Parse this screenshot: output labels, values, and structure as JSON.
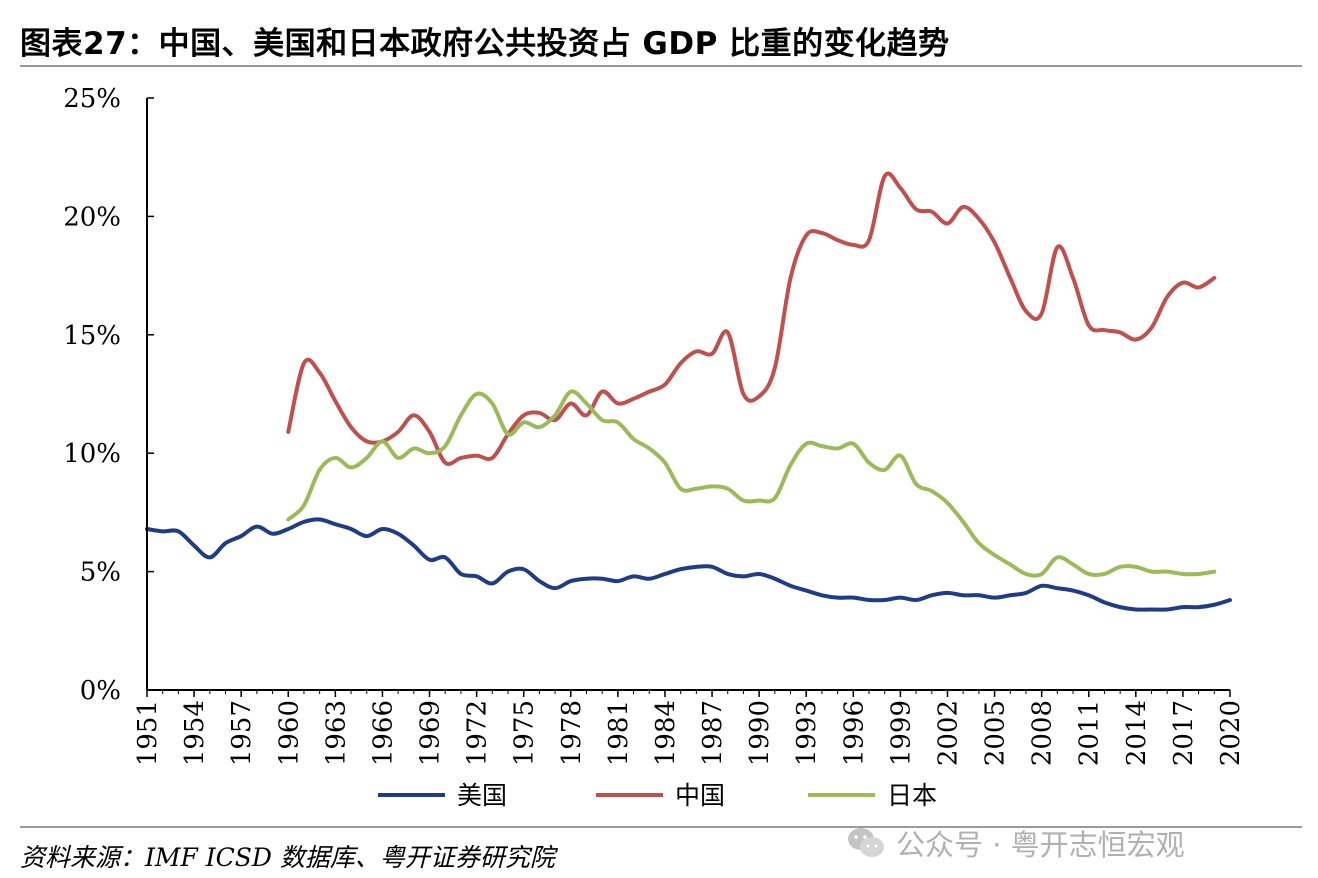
{
  "title": "图表27：中国、美国和日本政府公共投资占 GDP 比重的变化趋势",
  "source": "资料来源：IMF ICSD 数据库、粤开证券研究院",
  "watermark": "公众号 · 粤开志恒宏观",
  "colors": {
    "us": "#1f3c88",
    "cn": "#c0504d",
    "jp": "#9bbb59",
    "axis": "#000000",
    "rule": "#9a9a9a"
  },
  "chart_data": {
    "type": "line",
    "title": "图表27：中国、美国和日本政府公共投资占 GDP 比重的变化趋势",
    "xlabel": "",
    "ylabel": "",
    "xlim": [
      1951,
      2020
    ],
    "ylim": [
      0,
      25
    ],
    "ytick_values": [
      0,
      5,
      10,
      15,
      20,
      25
    ],
    "ytick_labels": [
      "0%",
      "5%",
      "10%",
      "15%",
      "20%",
      "25%"
    ],
    "xtick_values": [
      1951,
      1954,
      1957,
      1960,
      1963,
      1966,
      1969,
      1972,
      1975,
      1978,
      1981,
      1984,
      1987,
      1990,
      1993,
      1996,
      1999,
      2002,
      2005,
      2008,
      2011,
      2014,
      2017,
      2020
    ],
    "xtick_labels": [
      "1951",
      "1954",
      "1957",
      "1960",
      "1963",
      "1966",
      "1969",
      "1972",
      "1975",
      "1978",
      "1981",
      "1984",
      "1987",
      "1990",
      "1993",
      "1996",
      "1999",
      "2002",
      "2005",
      "2008",
      "2011",
      "2014",
      "2017",
      "2020"
    ],
    "legend_position": "bottom",
    "series": [
      {
        "name": "美国",
        "key": "us",
        "x": [
          1951,
          1952,
          1953,
          1954,
          1955,
          1956,
          1957,
          1958,
          1959,
          1960,
          1961,
          1962,
          1963,
          1964,
          1965,
          1966,
          1967,
          1968,
          1969,
          1970,
          1971,
          1972,
          1973,
          1974,
          1975,
          1976,
          1977,
          1978,
          1979,
          1980,
          1981,
          1982,
          1983,
          1984,
          1985,
          1986,
          1987,
          1988,
          1989,
          1990,
          1991,
          1992,
          1993,
          1994,
          1995,
          1996,
          1997,
          1998,
          1999,
          2000,
          2001,
          2002,
          2003,
          2004,
          2005,
          2006,
          2007,
          2008,
          2009,
          2010,
          2011,
          2012,
          2013,
          2014,
          2015,
          2016,
          2017,
          2018,
          2019,
          2020
        ],
        "values": [
          6.8,
          6.7,
          6.7,
          6.1,
          5.6,
          6.2,
          6.5,
          6.9,
          6.6,
          6.8,
          7.1,
          7.2,
          7.0,
          6.8,
          6.5,
          6.8,
          6.6,
          6.1,
          5.5,
          5.6,
          4.9,
          4.8,
          4.5,
          5.0,
          5.1,
          4.6,
          4.3,
          4.6,
          4.7,
          4.7,
          4.6,
          4.8,
          4.7,
          4.9,
          5.1,
          5.2,
          5.2,
          4.9,
          4.8,
          4.9,
          4.7,
          4.4,
          4.2,
          4.0,
          3.9,
          3.9,
          3.8,
          3.8,
          3.9,
          3.8,
          4.0,
          4.1,
          4.0,
          4.0,
          3.9,
          4.0,
          4.1,
          4.4,
          4.3,
          4.2,
          4.0,
          3.7,
          3.5,
          3.4,
          3.4,
          3.4,
          3.5,
          3.5,
          3.6,
          3.8
        ]
      },
      {
        "name": "中国",
        "key": "cn",
        "x": [
          1960,
          1961,
          1962,
          1963,
          1964,
          1965,
          1966,
          1967,
          1968,
          1969,
          1970,
          1971,
          1972,
          1973,
          1974,
          1975,
          1976,
          1977,
          1978,
          1979,
          1980,
          1981,
          1982,
          1983,
          1984,
          1985,
          1986,
          1987,
          1988,
          1989,
          1990,
          1991,
          1992,
          1993,
          1994,
          1995,
          1996,
          1997,
          1998,
          1999,
          2000,
          2001,
          2002,
          2003,
          2004,
          2005,
          2006,
          2007,
          2008,
          2009,
          2010,
          2011,
          2012,
          2013,
          2014,
          2015,
          2016,
          2017,
          2018,
          2019
        ],
        "values": [
          10.9,
          13.8,
          13.4,
          12.2,
          11.1,
          10.5,
          10.5,
          10.9,
          11.6,
          10.9,
          9.6,
          9.8,
          9.9,
          9.8,
          10.8,
          11.6,
          11.7,
          11.4,
          12.1,
          11.6,
          12.6,
          12.1,
          12.3,
          12.6,
          12.9,
          13.8,
          14.3,
          14.2,
          15.1,
          12.5,
          12.4,
          13.6,
          17.4,
          19.2,
          19.3,
          19.0,
          18.8,
          19.0,
          21.7,
          21.2,
          20.3,
          20.2,
          19.7,
          20.4,
          19.9,
          18.9,
          17.4,
          16.0,
          15.9,
          18.7,
          17.4,
          15.4,
          15.2,
          15.1,
          14.8,
          15.3,
          16.6,
          17.2,
          17.0,
          17.4
        ]
      },
      {
        "name": "日本",
        "key": "jp",
        "x": [
          1960,
          1961,
          1962,
          1963,
          1964,
          1965,
          1966,
          1967,
          1968,
          1969,
          1970,
          1971,
          1972,
          1973,
          1974,
          1975,
          1976,
          1977,
          1978,
          1979,
          1980,
          1981,
          1982,
          1983,
          1984,
          1985,
          1986,
          1987,
          1988,
          1989,
          1990,
          1991,
          1992,
          1993,
          1994,
          1995,
          1996,
          1997,
          1998,
          1999,
          2000,
          2001,
          2002,
          2003,
          2004,
          2005,
          2006,
          2007,
          2008,
          2009,
          2010,
          2011,
          2012,
          2013,
          2014,
          2015,
          2016,
          2017,
          2018,
          2019
        ],
        "values": [
          7.2,
          7.8,
          9.3,
          9.8,
          9.4,
          9.8,
          10.5,
          9.8,
          10.2,
          10.0,
          10.3,
          11.6,
          12.5,
          12.1,
          10.8,
          11.3,
          11.1,
          11.6,
          12.6,
          12.1,
          11.4,
          11.3,
          10.6,
          10.2,
          9.6,
          8.5,
          8.5,
          8.6,
          8.5,
          8.0,
          8.0,
          8.1,
          9.5,
          10.4,
          10.3,
          10.2,
          10.4,
          9.6,
          9.3,
          9.9,
          8.7,
          8.4,
          7.9,
          7.1,
          6.2,
          5.7,
          5.3,
          4.9,
          4.9,
          5.6,
          5.3,
          4.9,
          4.9,
          5.2,
          5.2,
          5.0,
          5.0,
          4.9,
          4.9,
          5.0
        ]
      }
    ]
  }
}
